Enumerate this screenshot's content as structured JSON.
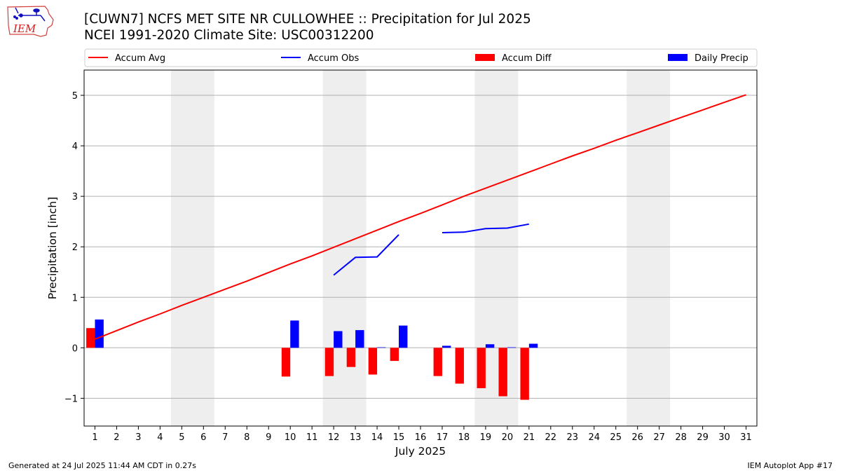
{
  "header": {
    "title_line1": "[CUWN7] NCFS MET SITE NR CULLOWHEE :: Precipitation for Jul 2025",
    "title_line2": "NCEI 1991-2020 Climate Site: USC00312200",
    "logo_text": "IEM"
  },
  "footer": {
    "generated": "Generated at 24 Jul 2025 11:44 AM CDT in 0.27s",
    "app": "IEM Autoplot App #17"
  },
  "colors": {
    "accum_avg": "#ff0000",
    "accum_obs": "#0000ff",
    "accum_diff": "#ff0000",
    "daily_precip": "#0000ff",
    "weekend_shade": "#eeeeee",
    "grid": "#b0b0b0"
  },
  "chart_data": {
    "type": "bar",
    "xlabel": "July 2025",
    "ylabel": "Precipitation [inch]",
    "xlim": [
      0.5,
      31.5
    ],
    "ylim": [
      -1.55,
      5.5
    ],
    "x_ticks": [
      1,
      2,
      3,
      4,
      5,
      6,
      7,
      8,
      9,
      10,
      11,
      12,
      13,
      14,
      15,
      16,
      17,
      18,
      19,
      20,
      21,
      22,
      23,
      24,
      25,
      26,
      27,
      28,
      29,
      30,
      31
    ],
    "y_ticks": [
      -1,
      0,
      1,
      2,
      3,
      4,
      5
    ],
    "y_tick_labels": [
      "−1",
      "0",
      "1",
      "2",
      "3",
      "4",
      "5"
    ],
    "grid": "horizontal",
    "legend_position": "top",
    "weekend_bands": [
      [
        4.5,
        6.5
      ],
      [
        11.5,
        13.5
      ],
      [
        18.5,
        20.5
      ],
      [
        25.5,
        27.5
      ]
    ],
    "series": [
      {
        "name": "Accum Avg",
        "type": "line",
        "color": "#ff0000",
        "x": [
          1,
          2,
          3,
          4,
          5,
          6,
          7,
          8,
          9,
          10,
          11,
          12,
          13,
          14,
          15,
          16,
          17,
          18,
          19,
          20,
          21,
          22,
          23,
          24,
          25,
          26,
          27,
          28,
          29,
          30,
          31
        ],
        "values": [
          0.17,
          0.34,
          0.51,
          0.67,
          0.84,
          1.0,
          1.16,
          1.32,
          1.49,
          1.66,
          1.82,
          1.99,
          2.16,
          2.33,
          2.5,
          2.66,
          2.83,
          3.0,
          3.16,
          3.32,
          3.48,
          3.64,
          3.8,
          3.95,
          4.11,
          4.26,
          4.41,
          4.56,
          4.71,
          4.86,
          5.01
        ]
      },
      {
        "name": "Accum Obs",
        "type": "line",
        "color": "#0000ff",
        "segments": [
          {
            "x": [
              12,
              13,
              14,
              15
            ],
            "values": [
              1.44,
              1.79,
              1.8,
              2.24
            ]
          },
          {
            "x": [
              17,
              18,
              19,
              20,
              21
            ],
            "values": [
              2.28,
              2.29,
              2.36,
              2.37,
              2.45
            ]
          }
        ]
      },
      {
        "name": "Accum Diff",
        "type": "bar",
        "color": "#ff0000",
        "x": [
          1,
          10,
          12,
          13,
          14,
          15,
          17,
          18,
          19,
          20,
          21
        ],
        "values": [
          0.39,
          -0.57,
          -0.56,
          -0.38,
          -0.53,
          -0.26,
          -0.56,
          -0.71,
          -0.8,
          -0.96,
          -1.03
        ]
      },
      {
        "name": "Daily Precip",
        "type": "bar",
        "color": "#0000ff",
        "x": [
          1,
          10,
          12,
          13,
          14,
          15,
          17,
          19,
          20,
          21
        ],
        "values": [
          0.56,
          0.54,
          0.33,
          0.35,
          0.01,
          0.44,
          0.04,
          0.07,
          0.01,
          0.08
        ]
      }
    ]
  }
}
